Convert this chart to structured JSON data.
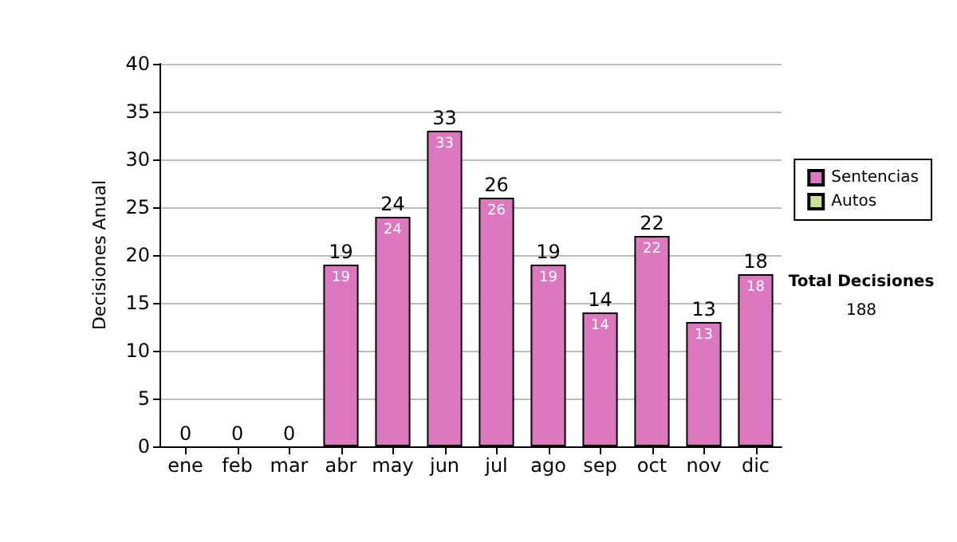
{
  "chart_data": {
    "type": "bar",
    "stacked": true,
    "ylabel": "Decisiones Anual",
    "categories": [
      "ene",
      "feb",
      "mar",
      "abr",
      "may",
      "jun",
      "jul",
      "ago",
      "sep",
      "oct",
      "nov",
      "dic"
    ],
    "series": [
      {
        "name": "Sentencias",
        "color": "#dc78c0",
        "values": [
          0,
          0,
          0,
          19,
          24,
          33,
          26,
          19,
          14,
          22,
          13,
          18
        ],
        "value_labels": [
          null,
          null,
          null,
          "19",
          "24",
          "33",
          "26",
          "19",
          "14",
          "22",
          "13",
          "18"
        ]
      },
      {
        "name": "Autos",
        "color": "#c8e09a",
        "values": [
          0,
          0,
          0,
          0,
          0,
          0,
          0,
          0,
          0,
          0,
          0,
          0
        ]
      }
    ],
    "totals": [
      "0",
      "0",
      "0",
      "19",
      "24",
      "33",
      "26",
      "19",
      "14",
      "22",
      "13",
      "18"
    ],
    "ylim": [
      0,
      40
    ],
    "yticks": [
      0,
      5,
      10,
      15,
      20,
      25,
      30,
      35,
      40
    ],
    "grid": "y",
    "legend": "right",
    "annotations": [
      "Total Decisiones",
      "188"
    ]
  }
}
